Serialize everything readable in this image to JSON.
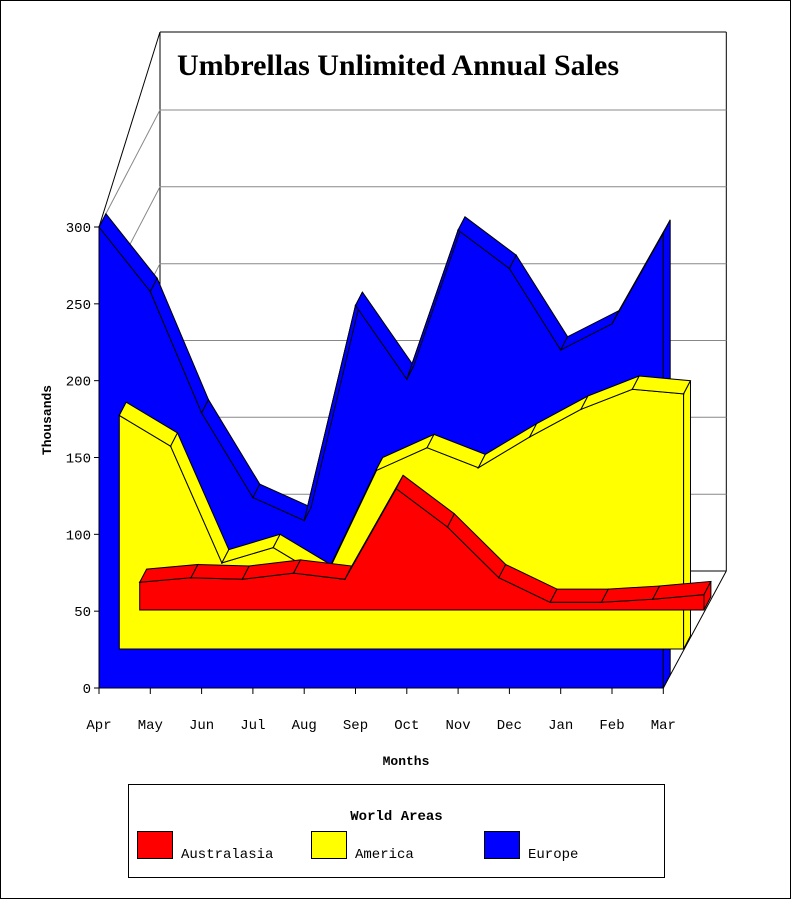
{
  "chart_data": {
    "type": "area",
    "subtype": "3d-stacked-area",
    "title": "Umbrellas Unlimited Annual Sales",
    "xlabel": "Months",
    "ylabel": "Thousands",
    "categories": [
      "Apr",
      "May",
      "Jun",
      "Jul",
      "Aug",
      "Sep",
      "Oct",
      "Nov",
      "Dec",
      "Jan",
      "Feb",
      "Mar"
    ],
    "ylim": [
      0,
      300
    ],
    "yticks": [
      "0",
      "50",
      "100",
      "150",
      "200",
      "250",
      "300"
    ],
    "grid": true,
    "series": [
      {
        "name": "Australasia",
        "color": "#ff0000",
        "values": [
          18,
          21,
          20,
          24,
          20,
          79,
          54,
          21,
          5,
          5,
          7,
          10
        ]
      },
      {
        "name": "America",
        "color": "#ffff00",
        "values": [
          152,
          132,
          56,
          66,
          46,
          116,
          131,
          118,
          138,
          156,
          169,
          166
        ]
      },
      {
        "name": "Europe",
        "color": "#0000ff",
        "values": [
          300,
          258,
          179,
          124,
          109,
          249,
          201,
          298,
          273,
          220,
          237,
          296
        ]
      }
    ],
    "legend": {
      "title": "World Areas",
      "position": "bottom"
    }
  }
}
